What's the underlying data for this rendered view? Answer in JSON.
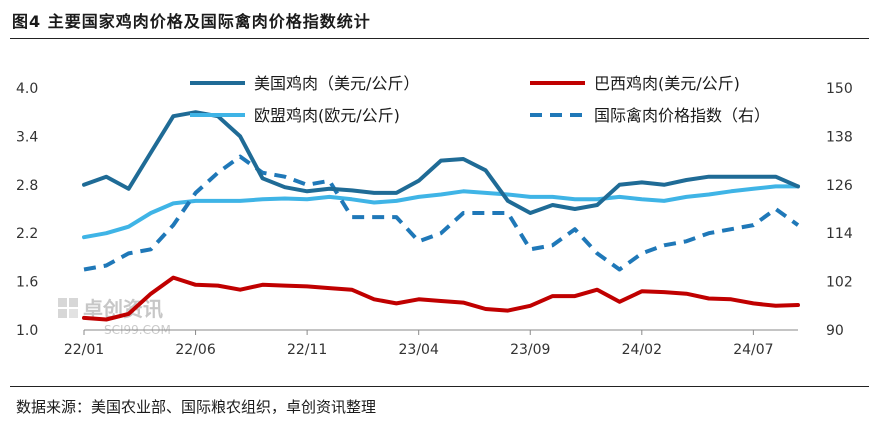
{
  "figure": {
    "title": "图4 主要国家鸡肉价格及国际禽肉价格指数统计",
    "source": "数据来源：美国农业部、国际粮农组织，卓创资讯整理",
    "watermark": {
      "name": "卓创资讯",
      "site": "SCI99.COM"
    }
  },
  "colors": {
    "us": "#1f6b96",
    "brazil": "#c00000",
    "eu": "#3fb4e6",
    "index": "#1f78b8"
  },
  "chart_data": {
    "type": "line",
    "x_tick_labels": [
      "22/01",
      "22/06",
      "22/11",
      "23/04",
      "23/09",
      "24/02",
      "24/07"
    ],
    "x_tick_index": [
      0,
      5,
      10,
      15,
      20,
      25,
      30
    ],
    "x_range": [
      0,
      32
    ],
    "y_left": {
      "range": [
        1.0,
        4.0
      ],
      "ticks": [
        "1.0",
        "1.6",
        "2.2",
        "2.8",
        "3.4",
        "4.0"
      ]
    },
    "y_right": {
      "range": [
        90,
        150
      ],
      "ticks": [
        "90",
        "102",
        "114",
        "126",
        "138",
        "150"
      ]
    },
    "grid": false,
    "legend": "top",
    "series": [
      {
        "name": "美国鸡肉（美元/公斤）",
        "axis": "left",
        "style": "solid",
        "color_key": "us",
        "values": [
          2.8,
          2.9,
          2.75,
          3.2,
          3.65,
          3.7,
          3.65,
          3.4,
          2.88,
          2.77,
          2.72,
          2.75,
          2.73,
          2.7,
          2.7,
          2.85,
          3.1,
          3.12,
          2.98,
          2.6,
          2.45,
          2.55,
          2.5,
          2.55,
          2.8,
          2.83,
          2.8,
          2.86,
          2.9,
          2.9,
          2.9,
          2.9,
          2.78
        ]
      },
      {
        "name": "巴西鸡肉(美元/公斤)",
        "axis": "left",
        "style": "solid",
        "color_key": "brazil",
        "values": [
          1.15,
          1.13,
          1.2,
          1.45,
          1.65,
          1.56,
          1.55,
          1.5,
          1.56,
          1.55,
          1.54,
          1.52,
          1.5,
          1.38,
          1.33,
          1.38,
          1.36,
          1.34,
          1.26,
          1.24,
          1.3,
          1.42,
          1.42,
          1.5,
          1.35,
          1.48,
          1.47,
          1.45,
          1.39,
          1.38,
          1.33,
          1.3,
          1.31
        ]
      },
      {
        "name": "欧盟鸡肉(欧元/公斤)",
        "axis": "left",
        "style": "solid",
        "color_key": "eu",
        "values": [
          2.15,
          2.2,
          2.28,
          2.45,
          2.57,
          2.6,
          2.6,
          2.6,
          2.62,
          2.63,
          2.62,
          2.65,
          2.62,
          2.58,
          2.6,
          2.65,
          2.68,
          2.72,
          2.7,
          2.68,
          2.65,
          2.65,
          2.62,
          2.62,
          2.65,
          2.62,
          2.6,
          2.65,
          2.68,
          2.72,
          2.75,
          2.78,
          2.78
        ]
      },
      {
        "name": "国际禽肉价格指数（右）",
        "axis": "right",
        "style": "dashed",
        "color_key": "index",
        "values": [
          105,
          106,
          109,
          110,
          116,
          124,
          129,
          133,
          129,
          128,
          126,
          127,
          118,
          118,
          118,
          112,
          114,
          119,
          119,
          119,
          110,
          111,
          115,
          109,
          105,
          109,
          111,
          112,
          114,
          115,
          116,
          120,
          116
        ]
      }
    ]
  }
}
